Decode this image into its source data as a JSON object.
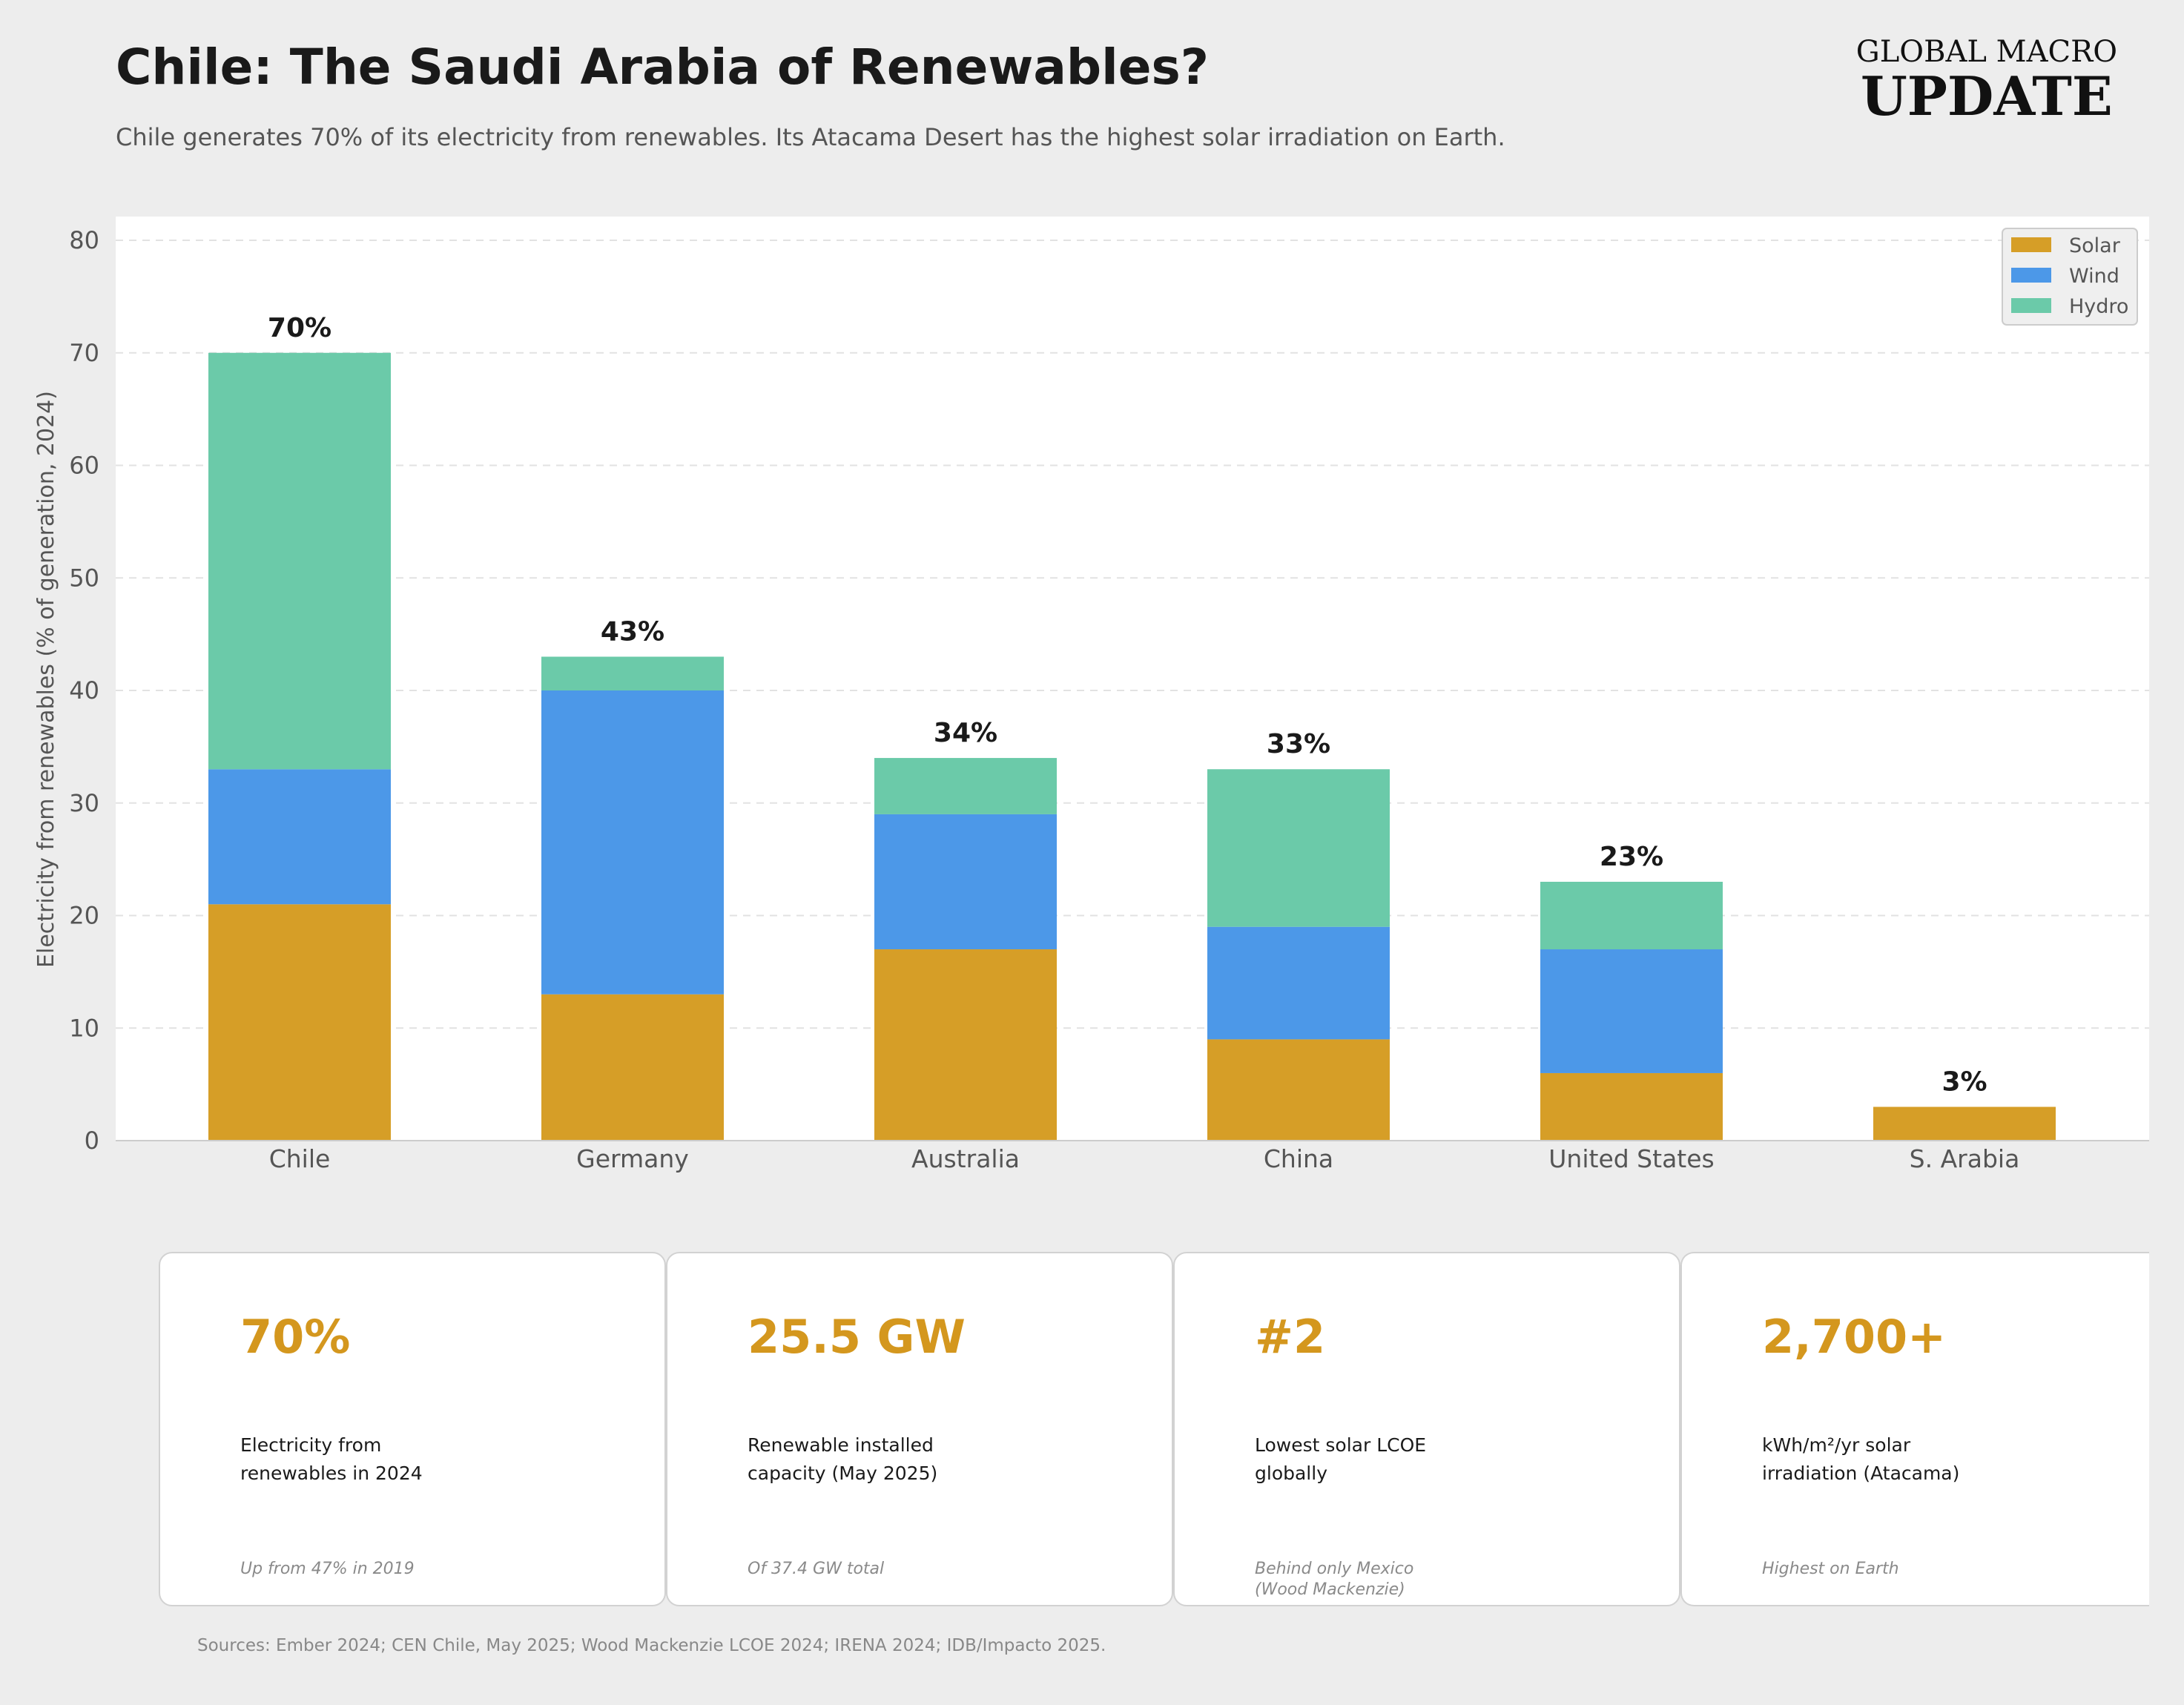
{
  "header": {
    "title": "Chile: The Saudi Arabia of Renewables?",
    "subtitle": "Chile generates 70% of its electricity from renewables. Its Atacama Desert has the highest solar irradiation on Earth.",
    "brand_line1": "GLOBAL MACRO",
    "brand_line2": "UPDATE"
  },
  "chart_data": {
    "type": "bar",
    "stacked": true,
    "categories": [
      "Chile",
      "Germany",
      "Australia",
      "China",
      "United States",
      "S. Arabia"
    ],
    "series": [
      {
        "name": "Solar",
        "color": "#d69e27",
        "values": [
          21,
          13,
          17,
          9,
          6,
          3
        ]
      },
      {
        "name": "Wind",
        "color": "#4c98e8",
        "values": [
          12,
          27,
          12,
          10,
          11,
          0
        ]
      },
      {
        "name": "Hydro",
        "color": "#6bcaa9",
        "values": [
          37,
          3,
          5,
          14,
          6,
          0
        ]
      }
    ],
    "total_labels": [
      "70%",
      "43%",
      "34%",
      "33%",
      "23%",
      "3%"
    ],
    "totals": [
      70,
      43,
      34,
      33,
      23,
      3
    ],
    "ylabel": "Electricity from renewables (% of generation, 2024)",
    "xlabel": "",
    "ylim": [
      0,
      82
    ],
    "yticks": [
      0,
      10,
      20,
      30,
      40,
      50,
      60,
      70,
      80
    ],
    "grid": true,
    "legend_position": "top-right"
  },
  "cards": [
    {
      "value": "70%",
      "label_line1": "Electricity from",
      "label_line2": "renewables in 2024",
      "note_line1": "Up from 47% in 2019",
      "note_line2": ""
    },
    {
      "value": "25.5 GW",
      "label_line1": "Renewable installed",
      "label_line2": "capacity (May 2025)",
      "note_line1": "Of 37.4 GW total",
      "note_line2": ""
    },
    {
      "value": "#2",
      "label_line1": "Lowest solar LCOE",
      "label_line2": "globally",
      "note_line1": "Behind only Mexico",
      "note_line2": "(Wood Mackenzie)"
    },
    {
      "value": "2,700+",
      "label_line1": "kWh/m²/yr solar",
      "label_line2": "irradiation (Atacama)",
      "note_line1": "Highest on Earth",
      "note_line2": ""
    }
  ],
  "footer": {
    "sources": "Sources: Ember 2024; CEN Chile, May 2025; Wood Mackenzie LCOE 2024; IRENA 2024; IDB/Impacto 2025."
  }
}
